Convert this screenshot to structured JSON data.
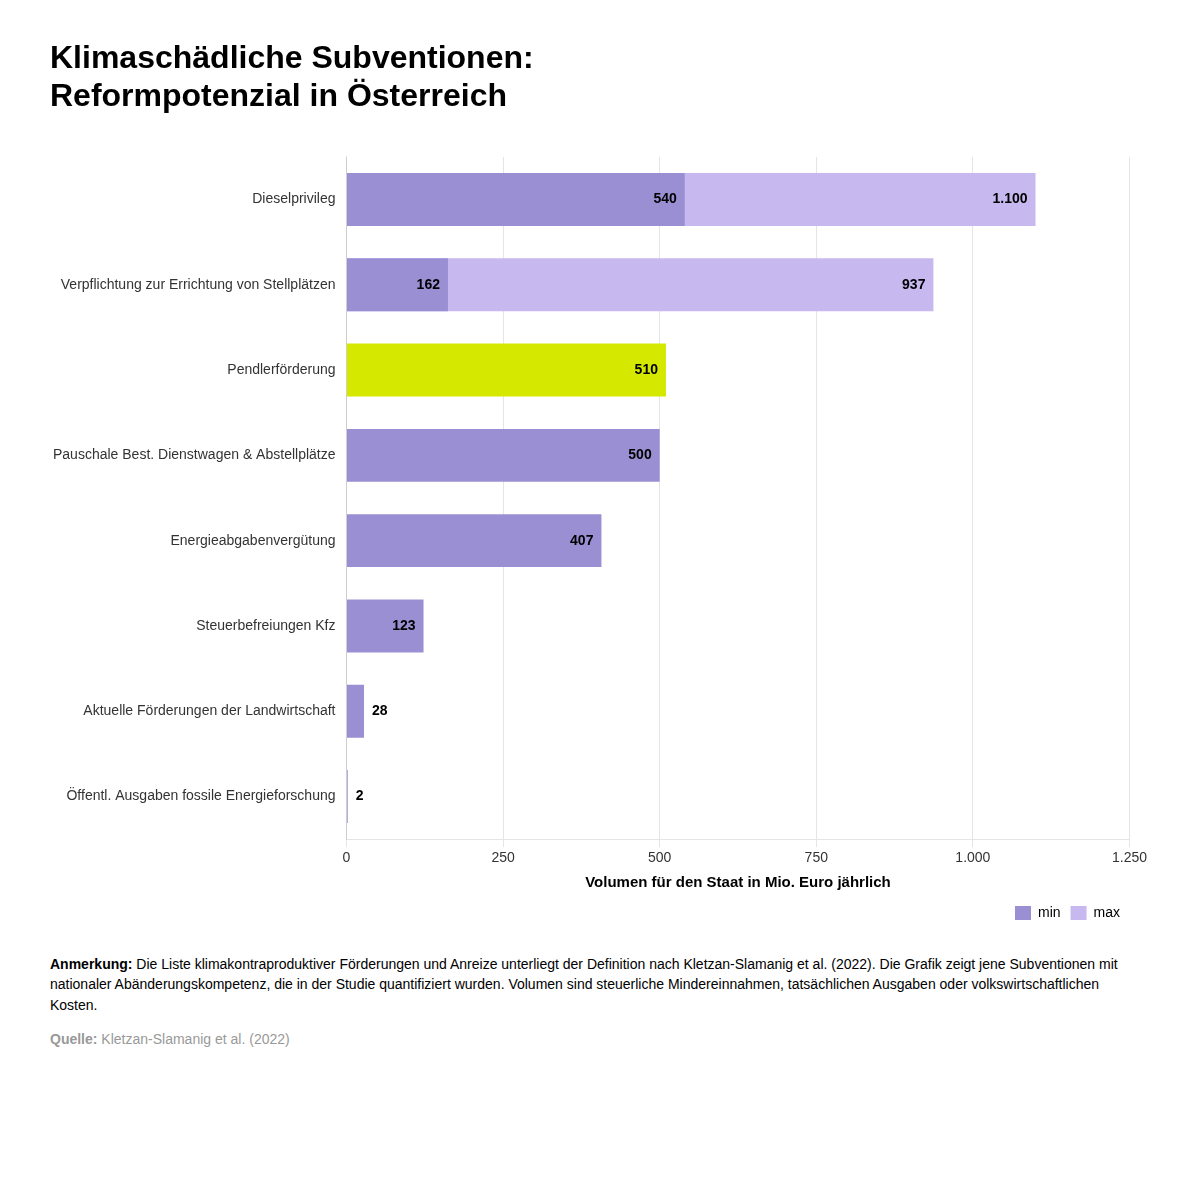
{
  "chart_data": {
    "type": "bar",
    "orientation": "horizontal",
    "title": [
      "Klimaschädliche Subventionen:",
      "Reformpotenzial in Österreich"
    ],
    "xlabel": "Volumen für den Staat in Mio. Euro jährlich",
    "categories": [
      "Dieselprivileg",
      "Verpflichtung zur Errichtung von Stellplätzen",
      "Pendlerförderung",
      "Pauschale Best. Dienstwagen & Abstellplätze",
      "Energieabgabenvergütung",
      "Steuerbefreiungen Kfz",
      "Aktuelle Förderungen der Landwirtschaft",
      "Öffentl. Ausgaben fossile Energieforschung"
    ],
    "series": [
      {
        "name": "min",
        "color": "#9b8fd4",
        "colors": [
          "#9b8fd4",
          "#9b8fd4",
          "#d4e800",
          "#9b8fd4",
          "#9b8fd4",
          "#9b8fd4",
          "#9b8fd4",
          "#9b8fd4"
        ],
        "values": [
          540,
          162,
          510,
          500,
          407,
          123,
          28,
          2
        ]
      },
      {
        "name": "max",
        "color": "#c8b8f0",
        "values": [
          1100,
          937,
          null,
          null,
          null,
          null,
          null,
          null
        ],
        "value_labels": [
          "1.100",
          "937",
          null,
          null,
          null,
          null,
          null,
          null
        ]
      }
    ],
    "xlim": [
      0,
      1250
    ],
    "xticks": [
      0,
      250,
      500,
      750,
      {
        "value": 1000,
        "label": "1.000"
      },
      {
        "value": 1250,
        "label": "1.250"
      }
    ],
    "grid": true,
    "legend": "lower right",
    "data_labels": true,
    "annotations": [
      "Anmerkung: Die Liste klimakontraproduktiver Förderungen und Anreize unterliegt der Definition nach Kletzan-Slamanig et al. (2022). Die Grafik zeigt jene Subventionen mit nationaler Abänderungskompetenz, die in der Studie quantifiziert wurden. Volumen sind steuerliche Mindereinnahmen, tatsächlichen Ausgaben oder volkswirtschaftlichen Kosten.",
      "Quelle: Kletzan-Slamanig et al. (2022)"
    ]
  }
}
